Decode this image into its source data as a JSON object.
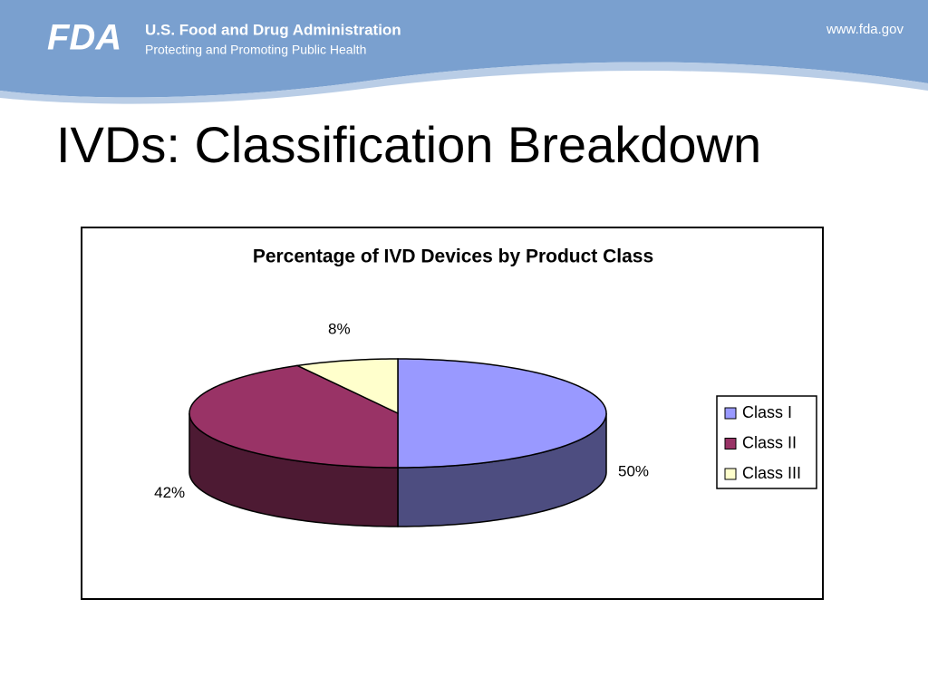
{
  "header": {
    "logo": "FDA",
    "agency": "U.S. Food and Drug Administration",
    "tagline": "Protecting and Promoting Public Health",
    "url": "www.fda.gov"
  },
  "slide_title": "IVDs: Classification Breakdown",
  "chart_data": {
    "type": "pie",
    "title": "Percentage of IVD Devices by Product Class",
    "categories": [
      "Class I",
      "Class II",
      "Class III"
    ],
    "values": [
      50,
      42,
      8
    ],
    "value_labels": [
      "50%",
      "42%",
      "8%"
    ],
    "colors": [
      "#9999ff",
      "#993366",
      "#ffffcc"
    ],
    "legend": "right"
  }
}
